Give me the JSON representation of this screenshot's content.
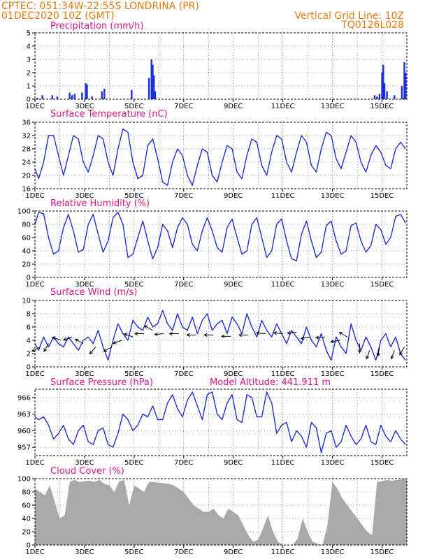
{
  "header": {
    "location": "CPTEC:   051:34W-22:55S   LONDRINA (PR)",
    "run_time": "01DEC2020 10Z (GMT)",
    "grid_note": "Vertical Grid Line: 10Z",
    "model_code": "TQ0126L028"
  },
  "colors": {
    "header": "#e87a10",
    "panel_title": "#e0158a",
    "line": "#1f2fd8",
    "bar": "#1f2fd8",
    "cloud": "#a9a9a9",
    "grid": "#444444",
    "arrow": "#000000"
  },
  "x_axis": {
    "days_span": 15,
    "ticks": [
      {
        "day": 0,
        "label": "1DEC"
      },
      {
        "day": 2,
        "label": "3DEC"
      },
      {
        "day": 4,
        "label": "5DEC"
      },
      {
        "day": 6,
        "label": "7DEC"
      },
      {
        "day": 8,
        "label": "9DEC"
      },
      {
        "day": 10,
        "label": "11DEC"
      },
      {
        "day": 12,
        "label": "13DEC"
      },
      {
        "day": 14,
        "label": "15DEC"
      }
    ]
  },
  "chart_data": [
    {
      "type": "bar",
      "title": "Precipitation (mm/h)",
      "ylim": [
        0,
        5
      ],
      "yticks": [
        0,
        1,
        2,
        3,
        4,
        5
      ],
      "x": [
        0.1,
        0.3,
        0.7,
        0.9,
        1.4,
        1.5,
        1.6,
        1.9,
        2.05,
        2.1,
        2.3,
        2.7,
        2.8,
        3.9,
        4.6,
        4.7,
        4.75,
        4.8,
        4.85,
        13.7,
        13.8,
        13.9,
        14.0,
        14.05,
        14.1,
        14.2,
        14.5,
        14.8,
        14.9,
        14.95
      ],
      "values": [
        0.1,
        0.3,
        0.3,
        0.2,
        0.5,
        0.3,
        0.4,
        0.5,
        1.2,
        1.1,
        0.2,
        0.6,
        0.8,
        0.7,
        1.6,
        3.0,
        2.6,
        1.8,
        0.6,
        0.3,
        0.2,
        0.4,
        2.0,
        2.6,
        1.2,
        0.6,
        0.3,
        1.0,
        2.8,
        2.0
      ]
    },
    {
      "type": "line",
      "title": "Surface Temperature (nC)",
      "ylim": [
        16,
        36
      ],
      "yticks": [
        16,
        20,
        24,
        28,
        32,
        36
      ],
      "x": [
        0.0,
        0.15,
        0.35,
        0.55,
        0.75,
        0.95,
        1.15,
        1.35,
        1.55,
        1.75,
        1.95,
        2.15,
        2.35,
        2.55,
        2.75,
        2.95,
        3.15,
        3.35,
        3.55,
        3.75,
        3.95,
        4.15,
        4.35,
        4.55,
        4.75,
        4.95,
        5.15,
        5.35,
        5.55,
        5.75,
        5.95,
        6.15,
        6.35,
        6.55,
        6.75,
        6.95,
        7.15,
        7.35,
        7.55,
        7.75,
        7.95,
        8.15,
        8.35,
        8.55,
        8.75,
        8.95,
        9.15,
        9.35,
        9.55,
        9.75,
        9.95,
        10.15,
        10.35,
        10.55,
        10.75,
        10.95,
        11.15,
        11.35,
        11.55,
        11.75,
        11.95,
        12.15,
        12.35,
        12.55,
        12.75,
        12.95,
        13.15,
        13.35,
        13.55,
        13.75,
        13.95,
        14.15,
        14.35,
        14.55,
        14.75,
        14.95
      ],
      "values": [
        22,
        19,
        24,
        32,
        32,
        26,
        20,
        26,
        32,
        31,
        24,
        21,
        26,
        32,
        31,
        24,
        20,
        28,
        34,
        33,
        24,
        19,
        20,
        29,
        31,
        25,
        18,
        17,
        24,
        28,
        26,
        20,
        17,
        23,
        28,
        27,
        20,
        18,
        24,
        29,
        28,
        21,
        19,
        26,
        31,
        30,
        23,
        20,
        27,
        32,
        31,
        24,
        21,
        27,
        32,
        30,
        23,
        21,
        28,
        33,
        32,
        25,
        22,
        27,
        32,
        30,
        24,
        21,
        26,
        29,
        27,
        23,
        22,
        28,
        30,
        28
      ]
    },
    {
      "type": "line",
      "title": "Relative Humidity (%)",
      "ylim": [
        0,
        100
      ],
      "yticks": [
        0,
        20,
        40,
        60,
        80,
        100
      ],
      "x": [
        0.0,
        0.15,
        0.35,
        0.55,
        0.75,
        0.95,
        1.15,
        1.35,
        1.55,
        1.75,
        1.95,
        2.15,
        2.35,
        2.55,
        2.75,
        2.95,
        3.15,
        3.35,
        3.55,
        3.75,
        3.95,
        4.15,
        4.35,
        4.55,
        4.75,
        4.95,
        5.15,
        5.35,
        5.55,
        5.75,
        5.95,
        6.15,
        6.35,
        6.55,
        6.75,
        6.95,
        7.15,
        7.35,
        7.55,
        7.75,
        7.95,
        8.15,
        8.35,
        8.55,
        8.75,
        8.95,
        9.15,
        9.35,
        9.55,
        9.75,
        9.95,
        10.15,
        10.35,
        10.55,
        10.75,
        10.95,
        11.15,
        11.35,
        11.55,
        11.75,
        11.95,
        12.15,
        12.35,
        12.55,
        12.75,
        12.95,
        13.15,
        13.35,
        13.55,
        13.75,
        13.95,
        14.15,
        14.35,
        14.55,
        14.75,
        14.95
      ],
      "values": [
        80,
        98,
        96,
        60,
        35,
        40,
        75,
        95,
        70,
        38,
        42,
        80,
        95,
        65,
        38,
        55,
        90,
        98,
        80,
        30,
        35,
        60,
        85,
        55,
        28,
        45,
        80,
        70,
        45,
        75,
        90,
        80,
        50,
        40,
        70,
        90,
        70,
        45,
        38,
        75,
        88,
        60,
        35,
        40,
        80,
        90,
        60,
        30,
        40,
        80,
        88,
        55,
        28,
        25,
        65,
        85,
        55,
        30,
        38,
        78,
        85,
        55,
        35,
        40,
        78,
        82,
        55,
        38,
        48,
        80,
        72,
        50,
        60,
        92,
        95,
        82
      ]
    },
    {
      "type": "line",
      "title": "Surface Wind (m/s)",
      "ylim": [
        0,
        10
      ],
      "yticks": [
        0,
        2,
        4,
        6,
        8,
        10
      ],
      "x": [
        0.0,
        0.15,
        0.35,
        0.55,
        0.75,
        0.95,
        1.15,
        1.35,
        1.55,
        1.75,
        1.95,
        2.15,
        2.35,
        2.55,
        2.75,
        2.95,
        3.15,
        3.35,
        3.55,
        3.75,
        3.95,
        4.15,
        4.35,
        4.55,
        4.75,
        4.95,
        5.15,
        5.35,
        5.55,
        5.75,
        5.95,
        6.15,
        6.35,
        6.55,
        6.75,
        6.95,
        7.15,
        7.35,
        7.55,
        7.75,
        7.95,
        8.15,
        8.35,
        8.55,
        8.75,
        8.95,
        9.15,
        9.35,
        9.55,
        9.75,
        9.95,
        10.15,
        10.35,
        10.55,
        10.75,
        10.95,
        11.15,
        11.35,
        11.55,
        11.75,
        11.95,
        12.15,
        12.35,
        12.55,
        12.75,
        12.95,
        13.15,
        13.35,
        13.55,
        13.75,
        13.95,
        14.15,
        14.35,
        14.55,
        14.75,
        14.95
      ],
      "values": [
        3.5,
        2.5,
        4.5,
        3.0,
        4.5,
        3.5,
        3.0,
        4.5,
        3.5,
        2.5,
        4.0,
        4.5,
        3.5,
        5.5,
        3.0,
        1.0,
        4.0,
        6.5,
        5.0,
        4.0,
        7.0,
        6.0,
        5.5,
        7.5,
        6.0,
        6.5,
        8.5,
        6.5,
        5.5,
        8.0,
        6.0,
        5.5,
        7.5,
        5.0,
        7.0,
        8.0,
        5.5,
        6.5,
        7.0,
        5.0,
        7.5,
        6.5,
        5.0,
        8.0,
        6.0,
        4.5,
        7.0,
        5.5,
        4.5,
        6.5,
        5.0,
        3.5,
        5.5,
        4.5,
        3.5,
        6.0,
        4.0,
        3.0,
        5.0,
        2.5,
        1.0,
        4.5,
        3.0,
        2.0,
        6.5,
        4.0,
        2.5,
        4.5,
        3.0,
        1.0,
        4.0,
        5.0,
        3.0,
        4.5,
        2.0,
        1.0
      ],
      "arrows": {
        "days": [
          0.2,
          0.55,
          1.05,
          1.5,
          1.95,
          2.45,
          3.1,
          3.5,
          3.95,
          4.4,
          4.75,
          5.2,
          5.8,
          6.5,
          7.2,
          7.9,
          8.6,
          9.3,
          10.0,
          10.55,
          11.1,
          11.7,
          12.3,
          12.6,
          13.1,
          13.5,
          13.9,
          14.5,
          14.9
        ],
        "speed": [
          3.0,
          3.5,
          4.0,
          4.5,
          3.5,
          3.0,
          3.0,
          4.0,
          4.5,
          5.0,
          5.5,
          5.0,
          5.0,
          4.8,
          4.8,
          4.6,
          4.8,
          5.0,
          5.0,
          5.2,
          4.5,
          4.5,
          4.0,
          4.5,
          3.5,
          2.5,
          3.0,
          2.5,
          3.0
        ],
        "dir_deg": [
          210,
          240,
          160,
          200,
          150,
          230,
          210,
          200,
          160,
          180,
          150,
          185,
          180,
          180,
          180,
          180,
          180,
          175,
          175,
          185,
          190,
          185,
          190,
          150,
          270,
          250,
          260,
          250,
          240
        ]
      }
    },
    {
      "type": "line",
      "title": "Surface Pressure (hPa)",
      "model_altitude": "Model Altitude: 441.911 m",
      "ylim": [
        955.5,
        967.5
      ],
      "yticks": [
        957,
        960,
        963,
        966
      ],
      "x": [
        0.0,
        0.15,
        0.35,
        0.55,
        0.75,
        0.95,
        1.15,
        1.35,
        1.55,
        1.75,
        1.95,
        2.15,
        2.35,
        2.55,
        2.75,
        2.95,
        3.15,
        3.35,
        3.55,
        3.75,
        3.95,
        4.15,
        4.35,
        4.55,
        4.75,
        4.95,
        5.15,
        5.35,
        5.55,
        5.75,
        5.95,
        6.15,
        6.35,
        6.55,
        6.75,
        6.95,
        7.15,
        7.35,
        7.55,
        7.75,
        7.95,
        8.15,
        8.35,
        8.55,
        8.75,
        8.95,
        9.15,
        9.35,
        9.55,
        9.75,
        9.95,
        10.15,
        10.35,
        10.55,
        10.75,
        10.95,
        11.15,
        11.35,
        11.55,
        11.75,
        11.95,
        12.15,
        12.35,
        12.55,
        12.75,
        12.95,
        13.15,
        13.35,
        13.55,
        13.75,
        13.95,
        14.15,
        14.35,
        14.55,
        14.75,
        14.95
      ],
      "values": [
        962.5,
        962.0,
        962.5,
        961.0,
        958.5,
        959.5,
        961.0,
        958.5,
        957.5,
        960.0,
        961.0,
        958.0,
        957.5,
        960.0,
        960.5,
        957.5,
        957.0,
        959.5,
        963.0,
        962.0,
        960.0,
        961.0,
        963.0,
        962.5,
        964.5,
        962.0,
        962.0,
        965.0,
        966.5,
        964.0,
        962.5,
        965.5,
        967.0,
        964.5,
        962.0,
        966.5,
        967.0,
        963.0,
        962.0,
        965.0,
        966.5,
        962.0,
        961.5,
        966.5,
        966.0,
        962.5,
        962.5,
        967.0,
        965.0,
        959.5,
        961.0,
        961.5,
        958.0,
        960.0,
        959.0,
        957.0,
        961.5,
        960.5,
        956.0,
        959.5,
        960.0,
        957.0,
        958.0,
        961.0,
        959.0,
        957.5,
        958.5,
        961.0,
        958.0,
        957.5,
        961.0,
        959.0,
        958.0,
        960.0,
        958.5,
        957.5
      ]
    },
    {
      "type": "area",
      "title": "Cloud Cover (%)",
      "ylim": [
        0,
        100
      ],
      "yticks": [
        0,
        20,
        40,
        60,
        80,
        100
      ],
      "x": [
        0.0,
        0.2,
        0.4,
        0.6,
        0.8,
        1.0,
        1.2,
        1.4,
        1.6,
        1.8,
        2.0,
        2.2,
        2.4,
        2.6,
        2.8,
        3.0,
        3.2,
        3.4,
        3.6,
        3.8,
        4.0,
        4.2,
        4.4,
        4.6,
        4.8,
        5.0,
        5.2,
        5.4,
        5.6,
        5.8,
        6.0,
        6.2,
        6.4,
        6.6,
        6.8,
        7.0,
        7.2,
        7.4,
        7.6,
        7.8,
        8.0,
        8.2,
        8.4,
        8.6,
        8.8,
        9.0,
        9.2,
        9.4,
        9.6,
        9.8,
        10.0,
        10.2,
        10.4,
        10.6,
        10.8,
        11.0,
        11.2,
        11.4,
        11.6,
        11.8,
        12.0,
        12.2,
        12.4,
        12.6,
        12.8,
        13.0,
        13.2,
        13.4,
        13.6,
        13.8,
        14.0,
        14.2,
        14.4,
        14.6,
        14.8,
        15.0
      ],
      "values": [
        85,
        80,
        75,
        90,
        65,
        40,
        45,
        95,
        98,
        95,
        96,
        97,
        95,
        98,
        92,
        90,
        80,
        96,
        98,
        60,
        90,
        85,
        80,
        95,
        95,
        94,
        93,
        92,
        90,
        85,
        80,
        70,
        60,
        55,
        50,
        50,
        55,
        45,
        40,
        55,
        50,
        45,
        30,
        15,
        5,
        8,
        25,
        45,
        20,
        5,
        0,
        0,
        0,
        10,
        40,
        20,
        5,
        2,
        0,
        30,
        95,
        85,
        70,
        60,
        50,
        40,
        30,
        20,
        15,
        95,
        96,
        98,
        97,
        98,
        99,
        100
      ]
    }
  ]
}
